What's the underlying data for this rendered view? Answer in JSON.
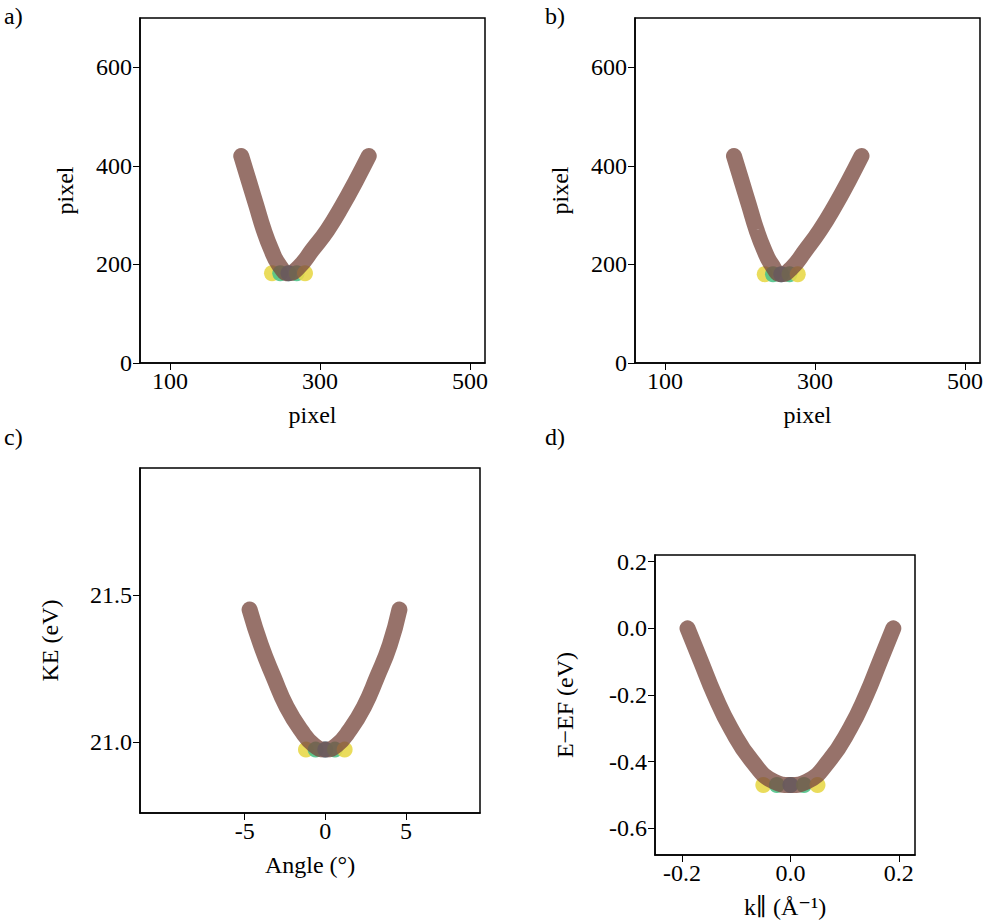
{
  "chart_data": [
    {
      "type": "line",
      "title": "a)",
      "x_label": "pixel",
      "y_label": "pixel",
      "xlim": [
        60,
        520
      ],
      "ylim": [
        0,
        700
      ],
      "xticks": [
        100,
        300,
        500
      ],
      "yticks": [
        0,
        200,
        400,
        600
      ],
      "grid": false,
      "series": [
        {
          "type": "line",
          "color": "#7a4a40",
          "x": [
            195,
            205,
            215,
            225,
            235,
            245,
            258,
            272,
            290,
            310,
            330,
            348,
            365
          ],
          "values": [
            420,
            370,
            320,
            270,
            230,
            200,
            182,
            195,
            230,
            270,
            320,
            370,
            420
          ]
        },
        {
          "type": "scatter",
          "colors": [
            "#e8d84a",
            "#4fc38a",
            "#2f8fc4",
            "#4fc38a",
            "#e8d84a"
          ],
          "x": [
            236,
            247,
            258,
            269,
            280
          ],
          "values": [
            182,
            182,
            182,
            182,
            182
          ]
        }
      ]
    },
    {
      "type": "line",
      "title": "b)",
      "x_label": "pixel",
      "y_label": "pixel",
      "xlim": [
        60,
        520
      ],
      "ylim": [
        0,
        700
      ],
      "xticks": [
        100,
        300,
        500
      ],
      "yticks": [
        0,
        200,
        400,
        600
      ],
      "grid": false,
      "series": [
        {
          "type": "line",
          "color": "#7a4a40",
          "x": [
            192,
            202,
            212,
            222,
            232,
            242,
            255,
            269,
            287,
            307,
            327,
            345,
            362
          ],
          "values": [
            420,
            370,
            320,
            270,
            230,
            200,
            180,
            193,
            228,
            270,
            320,
            370,
            420
          ]
        },
        {
          "type": "scatter",
          "colors": [
            "#e8d84a",
            "#4fc38a",
            "#2f8fc4",
            "#4fc38a",
            "#e8d84a"
          ],
          "x": [
            233,
            244,
            255,
            266,
            277
          ],
          "values": [
            180,
            180,
            180,
            180,
            180
          ]
        }
      ]
    },
    {
      "type": "line",
      "title": "c)",
      "x_label": "Angle (°)",
      "y_label": "KE (eV)",
      "xlim": [
        -11.5,
        9.6
      ],
      "ylim": [
        20.76,
        21.93
      ],
      "xticks": [
        -5,
        0,
        5
      ],
      "yticks": [
        {
          "value": 21,
          "label": "21.0"
        },
        21.5
      ],
      "grid": false,
      "series": [
        {
          "type": "line",
          "color": "#7a4a40",
          "x": [
            -4.7,
            -4.0,
            -3.2,
            -2.4,
            -1.5,
            -0.7,
            0,
            0.7,
            1.5,
            2.4,
            3.2,
            4.0,
            4.6
          ],
          "values": [
            21.45,
            21.33,
            21.22,
            21.12,
            21.04,
            20.99,
            20.975,
            20.99,
            21.04,
            21.12,
            21.22,
            21.33,
            21.45
          ]
        },
        {
          "type": "scatter",
          "colors": [
            "#e8d84a",
            "#4fc38a",
            "#2f8fc4",
            "#4fc38a",
            "#e8d84a"
          ],
          "x": [
            -1.2,
            -0.6,
            0,
            0.6,
            1.2
          ],
          "values": [
            20.975,
            20.975,
            20.975,
            20.975,
            20.975
          ]
        }
      ]
    },
    {
      "type": "line",
      "title": "d)",
      "x_label": "k∥ (Å⁻¹)",
      "y_label": "E−EF (eV)",
      "xlim": [
        -0.25,
        0.23
      ],
      "ylim": [
        -0.68,
        0.22
      ],
      "xticks": [
        -0.2,
        {
          "value": 0,
          "label": "0.0"
        },
        0.2
      ],
      "yticks": [
        -0.6,
        -0.4,
        -0.2,
        {
          "value": 0,
          "label": "0.0"
        },
        0.2
      ],
      "grid": false,
      "series": [
        {
          "type": "line",
          "color": "#7a4a40",
          "x": [
            -0.19,
            -0.165,
            -0.14,
            -0.11,
            -0.07,
            -0.03,
            0,
            0.03,
            0.07,
            0.11,
            0.14,
            0.165,
            0.19
          ],
          "values": [
            0,
            -0.1,
            -0.2,
            -0.3,
            -0.4,
            -0.46,
            -0.47,
            -0.46,
            -0.4,
            -0.3,
            -0.2,
            -0.1,
            0
          ]
        },
        {
          "type": "scatter",
          "colors": [
            "#e8d84a",
            "#4fc38a",
            "#2f8fc4",
            "#4fc38a",
            "#e8d84a"
          ],
          "x": [
            -0.05,
            -0.025,
            0,
            0.025,
            0.05
          ],
          "values": [
            -0.47,
            -0.47,
            -0.47,
            -0.47,
            -0.47
          ]
        }
      ]
    }
  ]
}
